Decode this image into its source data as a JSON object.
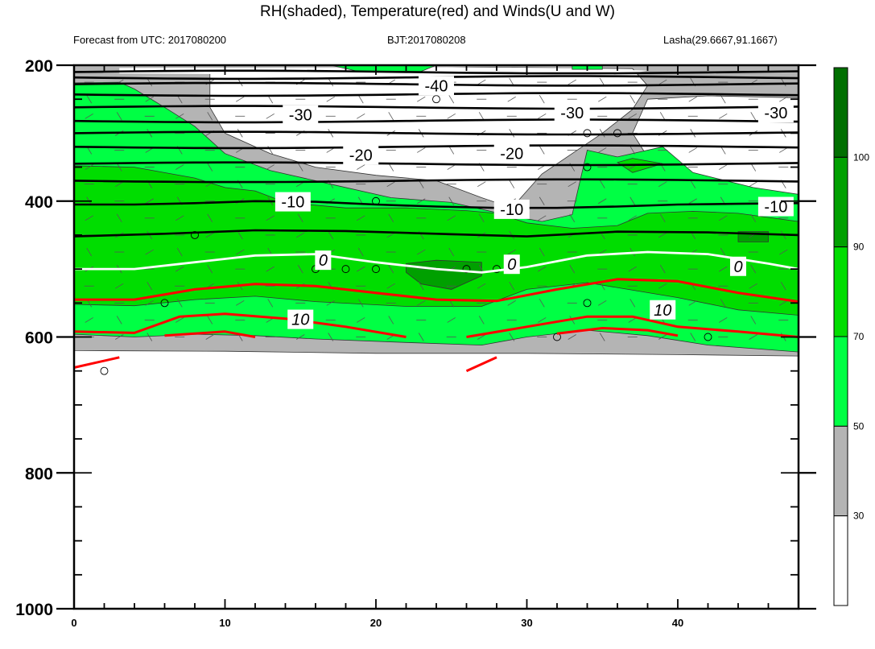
{
  "title": "RH(shaded), Temperature(red) and Winds(U and W)",
  "subtitles": {
    "left": "Forecast from UTC: 2017080200",
    "center": "BJT:2017080208",
    "right": "Lasha(29.6667,91.1667)"
  },
  "colors": {
    "rh_30_50": "#b4b4b4",
    "rh_50_70": "#00ff44",
    "rh_70_90": "#00dd00",
    "rh_90_100": "#00a000",
    "rh_100": "#006f00",
    "temp_warm": "#ff0000",
    "temp_zero": "#ffffff",
    "temp_cold": "#000000"
  },
  "chart_data": {
    "type": "heatmap",
    "title": "RH(shaded), Temperature(red) and Winds(U and W)",
    "xlabel": "",
    "ylabel": "",
    "xlim": [
      0,
      48
    ],
    "ylim": [
      1000,
      200
    ],
    "x_ticks": [
      0,
      10,
      20,
      30,
      40
    ],
    "y_ticks": [
      200,
      400,
      600,
      800,
      1000
    ],
    "colorbar": {
      "levels": [
        30,
        50,
        70,
        90,
        100
      ],
      "colors": [
        "#ffffff",
        "#b4b4b4",
        "#00ff44",
        "#00dd00",
        "#00a000",
        "#006f00"
      ]
    },
    "contour_labels": [
      {
        "text": "-40",
        "x": 24.0,
        "y": 230
      },
      {
        "text": "-30",
        "x": 15.0,
        "y": 273
      },
      {
        "text": "-30",
        "x": 33.0,
        "y": 270
      },
      {
        "text": "-30",
        "x": 46.5,
        "y": 270
      },
      {
        "text": "-20",
        "x": 19.0,
        "y": 332
      },
      {
        "text": "-20",
        "x": 29.0,
        "y": 330
      },
      {
        "text": "-10",
        "x": 14.5,
        "y": 401
      },
      {
        "text": "-10",
        "x": 29.0,
        "y": 412
      },
      {
        "text": "-10",
        "x": 46.5,
        "y": 408
      },
      {
        "text": "0",
        "x": 16.5,
        "y": 487
      },
      {
        "text": "0",
        "x": 29.0,
        "y": 493
      },
      {
        "text": "0",
        "x": 44.0,
        "y": 496
      },
      {
        "text": "10",
        "x": 15.0,
        "y": 574
      },
      {
        "text": "10",
        "x": 39.0,
        "y": 560
      }
    ]
  }
}
